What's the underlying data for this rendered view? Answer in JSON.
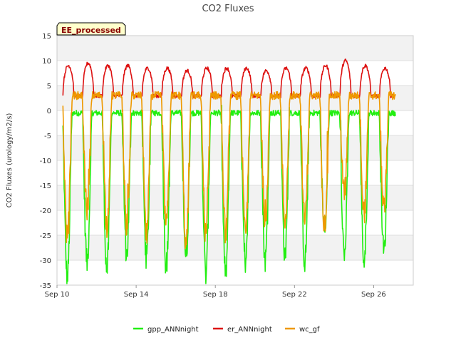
{
  "colors": {
    "gpp": "#22ee11",
    "er": "#dd1111",
    "wc": "#ee9900",
    "band": "#f2f2f2",
    "grid": "#dddddd",
    "badge_bg": "#ffffcc",
    "badge_text": "#880000"
  },
  "badge": {
    "text": "EE_processed"
  },
  "chart_data": {
    "type": "line",
    "title": "CO2 Fluxes",
    "xlabel": "",
    "ylabel": "CO2 Fluxes (urology/m2/s)",
    "xlim": [
      "Sep 10",
      "Sep 28"
    ],
    "ylim": [
      -35,
      15
    ],
    "y_ticks": [
      15,
      10,
      5,
      0,
      -5,
      -10,
      -15,
      -20,
      -25,
      -30,
      -35
    ],
    "x_ticks": [
      {
        "label": "Sep 10",
        "day": 10
      },
      {
        "label": "Sep 14",
        "day": 14
      },
      {
        "label": "Sep 18",
        "day": 18
      },
      {
        "label": "Sep 22",
        "day": 22
      },
      {
        "label": "Sep 26",
        "day": 26
      }
    ],
    "grid": true,
    "legend_position": "bottom",
    "x_start_day": 10.3,
    "x_end_day": 27.1,
    "daily_extremes": {
      "days": [
        "Sep 10",
        "Sep 11",
        "Sep 12",
        "Sep 13",
        "Sep 14",
        "Sep 15",
        "Sep 16",
        "Sep 17",
        "Sep 18",
        "Sep 19",
        "Sep 20",
        "Sep 21",
        "Sep 22",
        "Sep 23",
        "Sep 24",
        "Sep 25",
        "Sep 26",
        "Sep 27"
      ],
      "gpp_min": [
        -33.5,
        -30.5,
        -32,
        -29,
        -29.5,
        -31.5,
        -29.5,
        -33,
        -33,
        -32,
        -30,
        -29,
        -30.5,
        -24.5,
        -29,
        -30.5,
        -28.5,
        -28
      ],
      "er_peak": [
        9,
        9.5,
        9,
        9,
        8.5,
        8.5,
        8,
        8.5,
        8.5,
        8.5,
        8,
        8.5,
        8.5,
        9,
        10,
        9,
        8.5,
        8
      ],
      "wc_min": [
        -25.5,
        -20,
        -23,
        -23,
        -25,
        -23,
        -27,
        -25,
        -24.5,
        -25,
        -22,
        -22,
        -22,
        -23,
        -16.5,
        -20.5,
        -20,
        -20
      ]
    },
    "series": [
      {
        "name": "gpp_ANNnight",
        "color": "#22ee11",
        "night_level": -0.5,
        "day_baseline": 0
      },
      {
        "name": "er_ANNnight",
        "color": "#dd1111",
        "night_level": 3,
        "day_baseline": 3
      },
      {
        "name": "wc_gf",
        "color": "#ee9900",
        "night_level": 3,
        "day_baseline": 3
      }
    ]
  }
}
